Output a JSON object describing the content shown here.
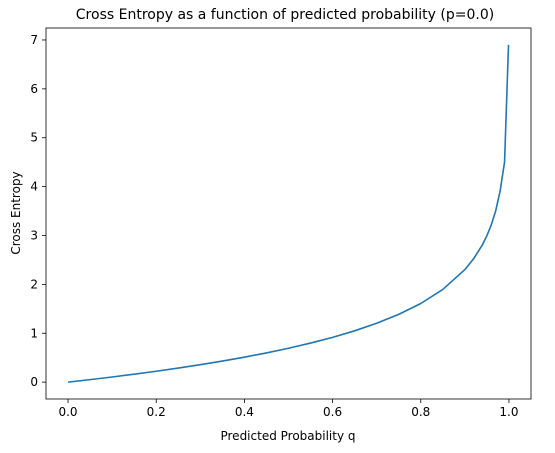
{
  "chart_data": {
    "type": "line",
    "title": "Cross Entropy as a function of predicted probability (p=0.0)",
    "xlabel": "Predicted Probability q",
    "ylabel": "Cross Entropy",
    "xlim": [
      -0.05,
      1.05
    ],
    "ylim": [
      -0.345,
      7.245
    ],
    "x_ticks": [
      0.0,
      0.2,
      0.4,
      0.6,
      0.8,
      1.0
    ],
    "x_tick_labels": [
      "0.0",
      "0.2",
      "0.4",
      "0.6",
      "0.8",
      "1.0"
    ],
    "y_ticks": [
      0,
      1,
      2,
      3,
      4,
      5,
      6,
      7
    ],
    "y_tick_labels": [
      "0",
      "1",
      "2",
      "3",
      "4",
      "5",
      "6",
      "7"
    ],
    "grid": false,
    "line_color": "#1f77b4",
    "series": [
      {
        "x": [
          0.0,
          0.05,
          0.1,
          0.15,
          0.2,
          0.25,
          0.3,
          0.35,
          0.4,
          0.45,
          0.5,
          0.55,
          0.6,
          0.65,
          0.7,
          0.75,
          0.8,
          0.85,
          0.9,
          0.92,
          0.94,
          0.95,
          0.96,
          0.97,
          0.98,
          0.99,
          0.999
        ],
        "y": [
          0.0,
          0.051,
          0.105,
          0.163,
          0.223,
          0.288,
          0.357,
          0.431,
          0.511,
          0.598,
          0.693,
          0.799,
          0.916,
          1.05,
          1.204,
          1.386,
          1.609,
          1.897,
          2.303,
          2.526,
          2.813,
          2.996,
          3.219,
          3.507,
          3.912,
          4.5,
          6.9
        ]
      }
    ]
  }
}
